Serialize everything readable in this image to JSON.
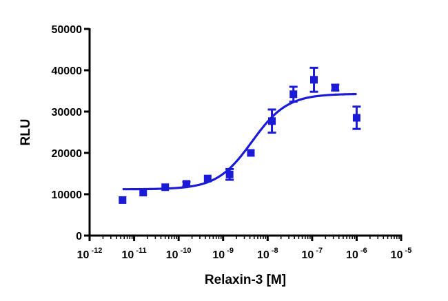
{
  "chart_data": {
    "type": "scatter",
    "xlabel": "Relaxin-3 [M]",
    "ylabel": "RLU",
    "x_scale": "log",
    "xlim": [
      1e-12,
      1e-05
    ],
    "ylim": [
      0,
      50000
    ],
    "x_ticks": [
      {
        "base": "10",
        "exp": "-12"
      },
      {
        "base": "10",
        "exp": "-11"
      },
      {
        "base": "10",
        "exp": "-10"
      },
      {
        "base": "10",
        "exp": "-9"
      },
      {
        "base": "10",
        "exp": "-8"
      },
      {
        "base": "10",
        "exp": "-7"
      },
      {
        "base": "10",
        "exp": "-6"
      },
      {
        "base": "10",
        "exp": "-5"
      }
    ],
    "y_ticks": [
      "0",
      "10000",
      "20000",
      "30000",
      "40000",
      "50000"
    ],
    "series": [
      {
        "color": "#1a1ad8",
        "marker": "square",
        "points": [
          {
            "x": 5.5e-12,
            "y": 8600,
            "err": 0
          },
          {
            "x": 1.6e-11,
            "y": 10400,
            "err": 0
          },
          {
            "x": 5e-11,
            "y": 11700,
            "err": 0
          },
          {
            "x": 1.5e-10,
            "y": 12500,
            "err": 500
          },
          {
            "x": 4.5e-10,
            "y": 13800,
            "err": 0
          },
          {
            "x": 1.4e-09,
            "y": 14800,
            "err": 1300
          },
          {
            "x": 4.2e-09,
            "y": 20000,
            "err": 0
          },
          {
            "x": 1.25e-08,
            "y": 27700,
            "err": 2800
          },
          {
            "x": 3.8e-08,
            "y": 34200,
            "err": 1800
          },
          {
            "x": 1.1e-07,
            "y": 37700,
            "err": 2900
          },
          {
            "x": 3.3e-07,
            "y": 35800,
            "err": 700
          },
          {
            "x": 1e-06,
            "y": 28500,
            "err": 2700
          }
        ],
        "fit": {
          "model": "sigmoidal dose-response",
          "bottom": 11200,
          "top": 34300,
          "logEC50": -8.35,
          "hill": 1.1,
          "x_range": [
            5.5e-12,
            1e-06
          ]
        }
      }
    ],
    "grid": false,
    "legend": "none"
  }
}
